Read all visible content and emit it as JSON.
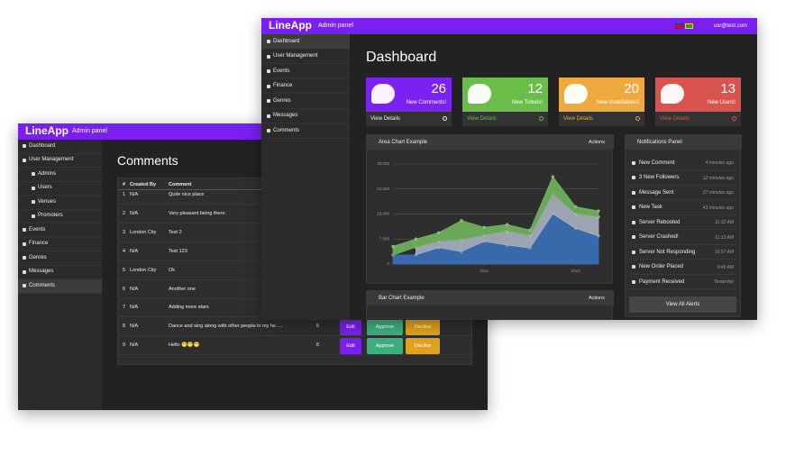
{
  "comments_window": {
    "brand": "LineApp",
    "subtitle": "Admin panel",
    "sidebar": [
      {
        "label": "Dashboard"
      },
      {
        "label": "User Management",
        "children": [
          "Admins",
          "Users",
          "Venues",
          "Promoters"
        ]
      },
      {
        "label": "Events"
      },
      {
        "label": "Finance"
      },
      {
        "label": "Genres"
      },
      {
        "label": "Messages"
      },
      {
        "label": "Comments"
      }
    ],
    "title": "Comments",
    "table": {
      "headers": [
        "#",
        "Created By",
        "Comment"
      ],
      "rows": [
        {
          "id": 1,
          "created_by": "N/A",
          "comment": "Quite nice place"
        },
        {
          "id": 2,
          "created_by": "N/A",
          "comment": "Very pleasant being there."
        },
        {
          "id": 3,
          "created_by": "London City",
          "comment": "Test 2"
        },
        {
          "id": 4,
          "created_by": "N/A",
          "comment": "Test 123"
        },
        {
          "id": 5,
          "created_by": "London City",
          "comment": "Ok"
        },
        {
          "id": 6,
          "created_by": "N/A",
          "comment": "Another one"
        },
        {
          "id": 7,
          "created_by": "N/A",
          "comment": "Adding more stars"
        },
        {
          "id": 8,
          "created_by": "N/A",
          "comment": "Dance and sing along with other people in my he.....",
          "count": 6,
          "actions": [
            "Edit",
            "Approve",
            "Decline"
          ]
        },
        {
          "id": 9,
          "created_by": "N/A",
          "comment": "Hello 😁😁😁",
          "count": 6,
          "actions": [
            "Edit",
            "Approve",
            "Decline"
          ]
        }
      ]
    }
  },
  "dashboard_window": {
    "brand": "LineApp",
    "subtitle": "Admin panel",
    "user": "usr@test.com",
    "sidebar": [
      "Dashboard",
      "User Management",
      "Events",
      "Finance",
      "Genres",
      "Messages",
      "Comments"
    ],
    "title": "Dashboard",
    "cards": [
      {
        "count": 26,
        "label": "New Comments!",
        "link": "View Details",
        "color": "#7a22f2"
      },
      {
        "count": 12,
        "label": "New Tickets!",
        "link": "View Details",
        "color": "#6bbd4a"
      },
      {
        "count": 20,
        "label": "New Installations!",
        "link": "View Details",
        "color": "#eea93f"
      },
      {
        "count": 13,
        "label": "New Users!",
        "link": "View Details",
        "color": "#d9534f"
      }
    ],
    "area_chart": {
      "type": "area",
      "title": "Area Chart Example",
      "menu": "Actions",
      "stacked": true,
      "x": [
        2010,
        2010.25,
        2010.5,
        2010.75,
        2011,
        2011.25,
        2011.5,
        2011.75,
        2012,
        2012.25
      ],
      "series": [
        {
          "color": "#3b6fb6",
          "values": [
            2666,
            2778,
            4912,
            3767,
            6810,
            5670,
            4820,
            15073,
            10687,
            8432
          ]
        },
        {
          "color": "#a6afbe",
          "values": [
            null,
            2294,
            1969,
            3597,
            1914,
            4293,
            3795,
            5967,
            4460,
            5713
          ]
        },
        {
          "color": "#71b25c",
          "values": [
            2647,
            2441,
            2501,
            5689,
            2293,
            1881,
            1588,
            5175,
            2028,
            1791
          ]
        }
      ],
      "xlim": [
        2010,
        2012.25
      ],
      "xticks": [
        2011,
        2012
      ],
      "ylim": [
        0,
        30000
      ],
      "yticks": [
        0,
        {
          "value": 7500,
          "label": "7,500"
        },
        {
          "value": 15000,
          "label": "15,000"
        },
        {
          "value": 22500,
          "label": "22,500"
        },
        {
          "value": 30000,
          "label": "30,000"
        }
      ],
      "grid": true
    },
    "bar_chart": {
      "title": "Bar Chart Example",
      "menu": "Actions"
    },
    "notifications": {
      "title": "Notifications Panel",
      "items": [
        {
          "label": "New Comment",
          "time": "4 minutes ago"
        },
        {
          "label": "3 New Followers",
          "time": "12 minutes ago"
        },
        {
          "label": "Message Sent",
          "time": "27 minutes ago"
        },
        {
          "label": "New Task",
          "time": "43 minutes ago"
        },
        {
          "label": "Server Rebooted",
          "time": "11:32 AM"
        },
        {
          "label": "Server Crashed!",
          "time": "11:13 AM"
        },
        {
          "label": "Server Not Responding",
          "time": "10:57 AM"
        },
        {
          "label": "New Order Placed",
          "time": "9:49 AM"
        },
        {
          "label": "Payment Received",
          "time": "Yesterday"
        }
      ],
      "button": "View All Alerts"
    }
  }
}
